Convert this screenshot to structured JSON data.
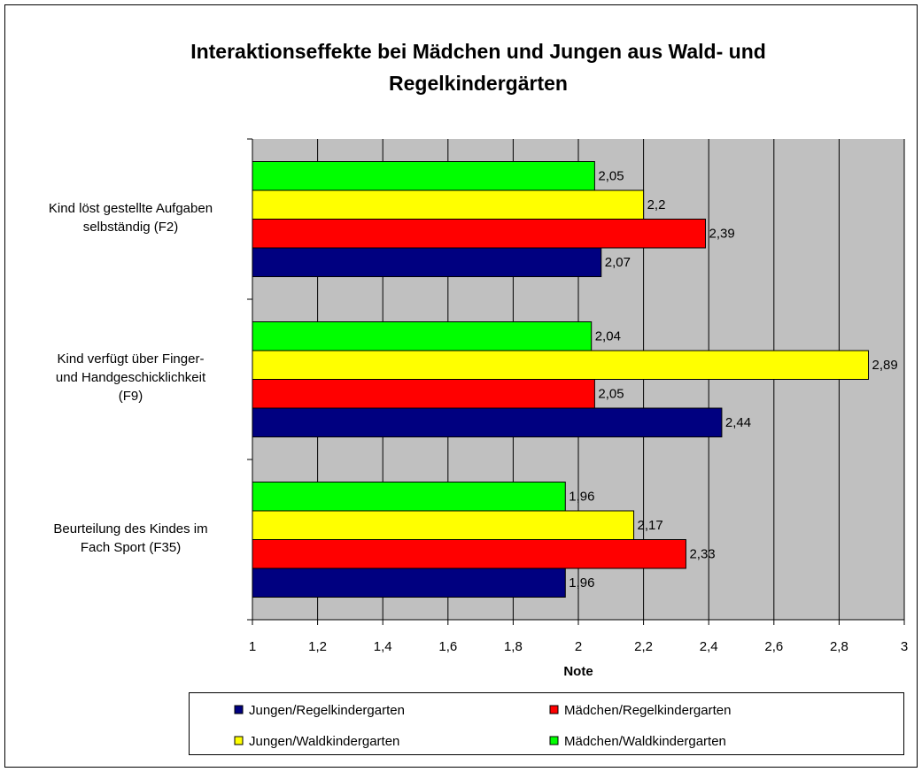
{
  "chart_data": {
    "type": "bar",
    "orientation": "horizontal",
    "title": "Interaktionseffekte bei Mädchen und Jungen aus Wald- und\nRegelkindergärten",
    "categories": [
      "Kind löst gestellte Aufgaben\nselbständig (F2)",
      "Kind verfügt über Finger-\nund Handgeschicklichkeit\n(F9)",
      "Beurteilung des Kindes im\nFach Sport (F35)"
    ],
    "series": [
      {
        "name": "Jungen/Regelkindergarten",
        "color": "#000080",
        "values": [
          2.07,
          2.44,
          1.96
        ],
        "value_labels": [
          "2,07",
          "2,44",
          "1,96"
        ]
      },
      {
        "name": "Mädchen/Regelkindergarten",
        "color": "#ff0000",
        "values": [
          2.39,
          2.05,
          2.33
        ],
        "value_labels": [
          "2,39",
          "2,05",
          "2,33"
        ]
      },
      {
        "name": "Jungen/Waldkindergarten",
        "color": "#ffff00",
        "values": [
          2.2,
          2.89,
          2.17
        ],
        "value_labels": [
          "2,2",
          "2,89",
          "2,17"
        ]
      },
      {
        "name": "Mädchen/Waldkindergarten",
        "color": "#00ff00",
        "values": [
          2.05,
          2.04,
          1.96
        ],
        "value_labels": [
          "2,05",
          "2,04",
          "1,96"
        ]
      }
    ],
    "xlabel": "Note",
    "xlim": [
      1,
      3
    ],
    "xticks": [
      1,
      {
        "value": 1.2,
        "label": "1,2"
      },
      {
        "value": 1.4,
        "label": "1,4"
      },
      {
        "value": 1.6,
        "label": "1,6"
      },
      {
        "value": 1.8,
        "label": "1,8"
      },
      2,
      {
        "value": 2.2,
        "label": "2,2"
      },
      {
        "value": 2.4,
        "label": "2,4"
      },
      {
        "value": 2.6,
        "label": "2,6"
      },
      {
        "value": 2.8,
        "label": "2,8"
      },
      3
    ],
    "grid": true,
    "legend": "bottom"
  }
}
